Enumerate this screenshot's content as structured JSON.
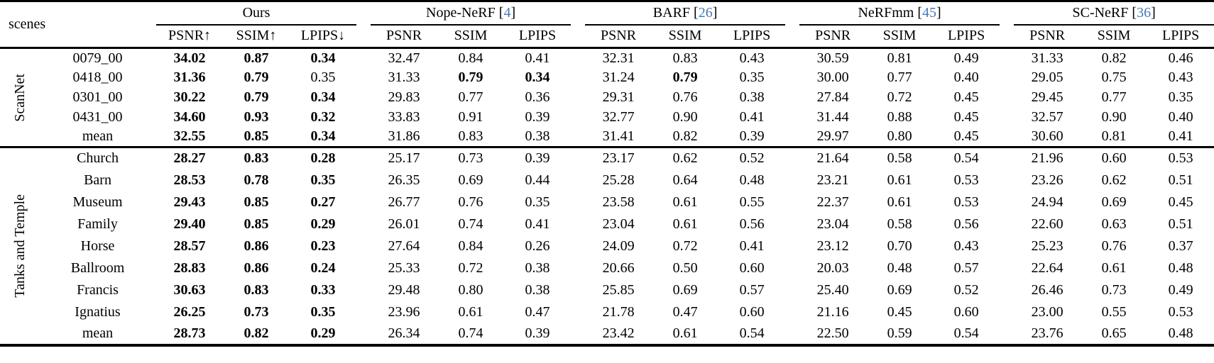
{
  "accent": {
    "citation_color": "#4479b8",
    "text_color": "#000000"
  },
  "table": {
    "scenes_label": "scenes",
    "methods": [
      {
        "name": "Ours",
        "cite": null,
        "metrics": [
          "PSNR↑",
          "SSIM↑",
          "LPIPS↓"
        ]
      },
      {
        "name": "Nope-NeRF",
        "cite": "4",
        "metrics": [
          "PSNR",
          "SSIM",
          "LPIPS"
        ]
      },
      {
        "name": "BARF",
        "cite": "26",
        "metrics": [
          "PSNR",
          "SSIM",
          "LPIPS"
        ]
      },
      {
        "name": "NeRFmm",
        "cite": "45",
        "metrics": [
          "PSNR",
          "SSIM",
          "LPIPS"
        ]
      },
      {
        "name": "SC-NeRF",
        "cite": "36",
        "metrics": [
          "PSNR",
          "SSIM",
          "LPIPS"
        ]
      }
    ],
    "groups": [
      {
        "label": "ScanNet",
        "rows": [
          {
            "scene": "0079_00",
            "cells": [
              "34.02",
              "0.87",
              "0.34",
              "32.47",
              "0.84",
              "0.41",
              "32.31",
              "0.83",
              "0.43",
              "30.59",
              "0.81",
              "0.49",
              "31.33",
              "0.82",
              "0.46"
            ],
            "bold": [
              0,
              1,
              2
            ]
          },
          {
            "scene": "0418_00",
            "cells": [
              "31.36",
              "0.79",
              "0.35",
              "31.33",
              "0.79",
              "0.34",
              "31.24",
              "0.79",
              "0.35",
              "30.00",
              "0.77",
              "0.40",
              "29.05",
              "0.75",
              "0.43"
            ],
            "bold": [
              0,
              1,
              4,
              5,
              7
            ]
          },
          {
            "scene": "0301_00",
            "cells": [
              "30.22",
              "0.79",
              "0.34",
              "29.83",
              "0.77",
              "0.36",
              "29.31",
              "0.76",
              "0.38",
              "27.84",
              "0.72",
              "0.45",
              "29.45",
              "0.77",
              "0.35"
            ],
            "bold": [
              0,
              1,
              2
            ]
          },
          {
            "scene": "0431_00",
            "cells": [
              "34.60",
              "0.93",
              "0.32",
              "33.83",
              "0.91",
              "0.39",
              "32.77",
              "0.90",
              "0.41",
              "31.44",
              "0.88",
              "0.45",
              "32.57",
              "0.90",
              "0.40"
            ],
            "bold": [
              0,
              1,
              2
            ]
          },
          {
            "scene": "mean",
            "cells": [
              "32.55",
              "0.85",
              "0.34",
              "31.86",
              "0.83",
              "0.38",
              "31.41",
              "0.82",
              "0.39",
              "29.97",
              "0.80",
              "0.45",
              "30.60",
              "0.81",
              "0.41"
            ],
            "bold": [
              0,
              1,
              2
            ]
          }
        ]
      },
      {
        "label": "Tanks and Temple",
        "rows": [
          {
            "scene": "Church",
            "cells": [
              "28.27",
              "0.83",
              "0.28",
              "25.17",
              "0.73",
              "0.39",
              "23.17",
              "0.62",
              "0.52",
              "21.64",
              "0.58",
              "0.54",
              "21.96",
              "0.60",
              "0.53"
            ],
            "bold": [
              0,
              1,
              2
            ]
          },
          {
            "scene": "Barn",
            "cells": [
              "28.53",
              "0.78",
              "0.35",
              "26.35",
              "0.69",
              "0.44",
              "25.28",
              "0.64",
              "0.48",
              "23.21",
              "0.61",
              "0.53",
              "23.26",
              "0.62",
              "0.51"
            ],
            "bold": [
              0,
              1,
              2
            ]
          },
          {
            "scene": "Museum",
            "cells": [
              "29.43",
              "0.85",
              "0.27",
              "26.77",
              "0.76",
              "0.35",
              "23.58",
              "0.61",
              "0.55",
              "22.37",
              "0.61",
              "0.53",
              "24.94",
              "0.69",
              "0.45"
            ],
            "bold": [
              0,
              1,
              2
            ]
          },
          {
            "scene": "Family",
            "cells": [
              "29.40",
              "0.85",
              "0.29",
              "26.01",
              "0.74",
              "0.41",
              "23.04",
              "0.61",
              "0.56",
              "23.04",
              "0.58",
              "0.56",
              "22.60",
              "0.63",
              "0.51"
            ],
            "bold": [
              0,
              1,
              2
            ]
          },
          {
            "scene": "Horse",
            "cells": [
              "28.57",
              "0.86",
              "0.23",
              "27.64",
              "0.84",
              "0.26",
              "24.09",
              "0.72",
              "0.41",
              "23.12",
              "0.70",
              "0.43",
              "25.23",
              "0.76",
              "0.37"
            ],
            "bold": [
              0,
              1,
              2
            ]
          },
          {
            "scene": "Ballroom",
            "cells": [
              "28.83",
              "0.86",
              "0.24",
              "25.33",
              "0.72",
              "0.38",
              "20.66",
              "0.50",
              "0.60",
              "20.03",
              "0.48",
              "0.57",
              "22.64",
              "0.61",
              "0.48"
            ],
            "bold": [
              0,
              1,
              2
            ]
          },
          {
            "scene": "Francis",
            "cells": [
              "30.63",
              "0.83",
              "0.33",
              "29.48",
              "0.80",
              "0.38",
              "25.85",
              "0.69",
              "0.57",
              "25.40",
              "0.69",
              "0.52",
              "26.46",
              "0.73",
              "0.49"
            ],
            "bold": [
              0,
              1,
              2
            ]
          },
          {
            "scene": "Ignatius",
            "cells": [
              "26.25",
              "0.73",
              "0.35",
              "23.96",
              "0.61",
              "0.47",
              "21.78",
              "0.47",
              "0.60",
              "21.16",
              "0.45",
              "0.60",
              "23.00",
              "0.55",
              "0.53"
            ],
            "bold": [
              0,
              1,
              2
            ]
          },
          {
            "scene": "mean",
            "cells": [
              "28.73",
              "0.82",
              "0.29",
              "26.34",
              "0.74",
              "0.39",
              "23.42",
              "0.61",
              "0.54",
              "22.50",
              "0.59",
              "0.54",
              "23.76",
              "0.65",
              "0.48"
            ],
            "bold": [
              0,
              1,
              2
            ]
          }
        ]
      }
    ]
  }
}
